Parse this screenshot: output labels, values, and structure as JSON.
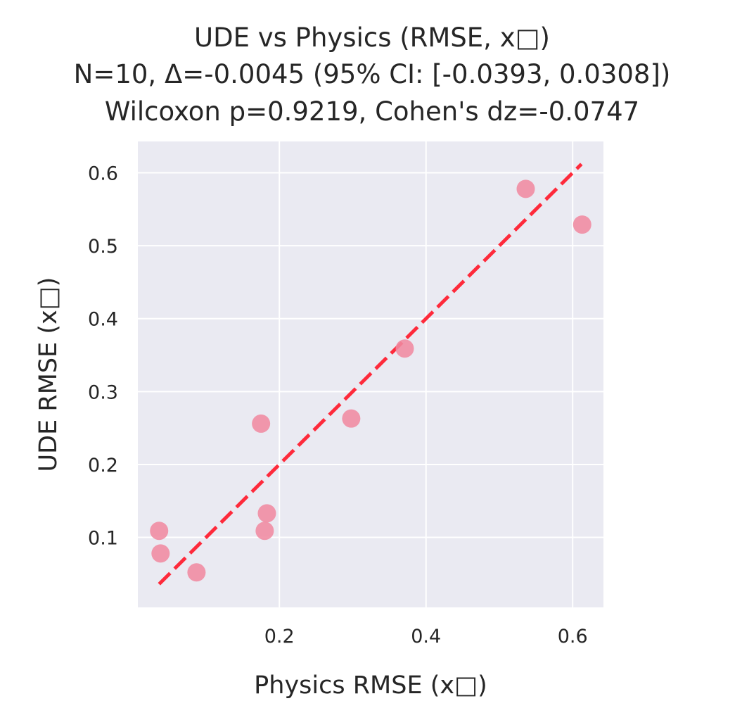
{
  "chart_data": {
    "type": "scatter",
    "title": [
      "UDE vs Physics (RMSE, x□)",
      "N=10, Δ=-0.0045 (95% CI: [-0.0393, 0.0308])",
      "Wilcoxon p=0.9219, Cohen's dz=-0.0747"
    ],
    "xlabel": "Physics RMSE (x□)",
    "ylabel": "UDE RMSE (x□)",
    "xlim": [
      0.007,
      0.642
    ],
    "ylim": [
      0.004,
      0.643
    ],
    "xticks": [
      0.2,
      0.4,
      0.6
    ],
    "xtick_labels": [
      "0.2",
      "0.4",
      "0.6"
    ],
    "yticks": [
      0.1,
      0.2,
      0.3,
      0.4,
      0.5,
      0.6
    ],
    "ytick_labels": [
      "0.1",
      "0.2",
      "0.3",
      "0.4",
      "0.5",
      "0.6"
    ],
    "grid": true,
    "point_color": "#f08aa1",
    "background_color": "#eaeaf2",
    "reference_line_color": "#ff2030",
    "reference_line": {
      "style": "dashed",
      "x": [
        0.036,
        0.612
      ],
      "y": [
        0.036,
        0.612
      ]
    },
    "points": [
      {
        "x": 0.036,
        "y": 0.109
      },
      {
        "x": 0.038,
        "y": 0.078
      },
      {
        "x": 0.087,
        "y": 0.052
      },
      {
        "x": 0.175,
        "y": 0.256
      },
      {
        "x": 0.18,
        "y": 0.109
      },
      {
        "x": 0.183,
        "y": 0.133
      },
      {
        "x": 0.298,
        "y": 0.263
      },
      {
        "x": 0.371,
        "y": 0.359
      },
      {
        "x": 0.536,
        "y": 0.578
      },
      {
        "x": 0.613,
        "y": 0.529
      }
    ]
  }
}
